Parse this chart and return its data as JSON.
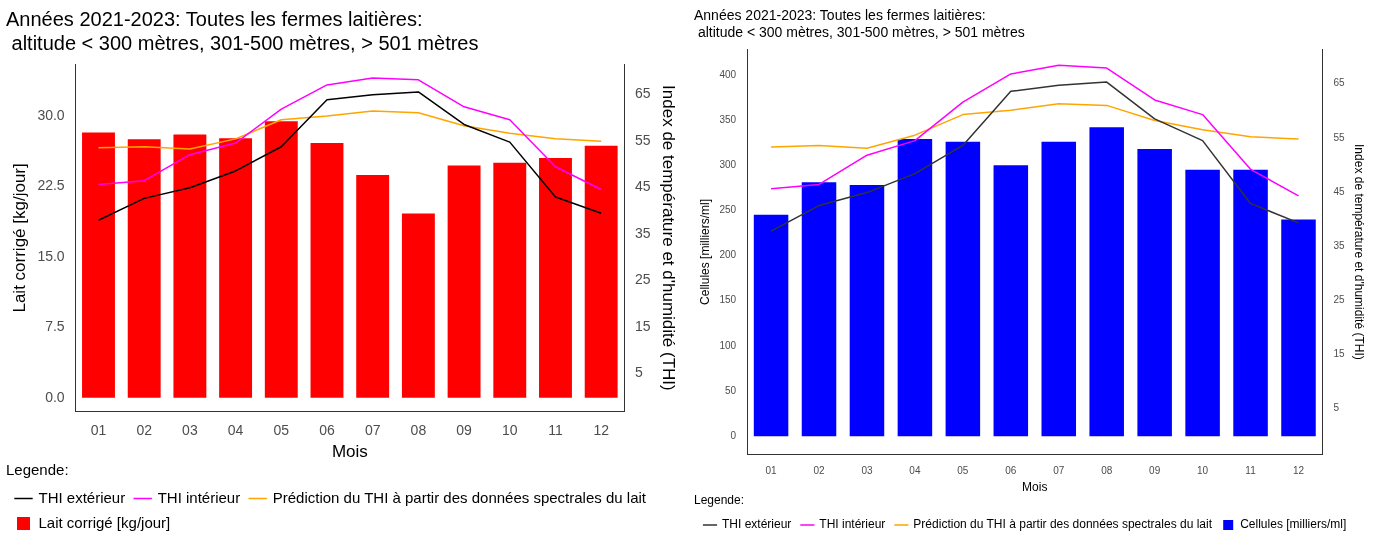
{
  "chart_data": [
    {
      "type": "bar",
      "title": "Années 2021-2023: Toutes les fermes laitières:\n altitude < 300 mètres, 301-500 mètres, > 501 mètres",
      "xlabel": "Mois",
      "ylabel": "Lait corrigé [kg/jour]",
      "y2label": "Index de température et d'humidité (THI)",
      "legend_title": "Legende:",
      "categories": [
        "01",
        "02",
        "03",
        "04",
        "05",
        "06",
        "07",
        "08",
        "09",
        "10",
        "11",
        "12"
      ],
      "series": [
        {
          "name": "Lait corrigé [kg/jour]",
          "color": "#ff0000",
          "values": [
            28.2,
            27.5,
            28.0,
            27.6,
            29.4,
            27.1,
            23.7,
            19.6,
            24.7,
            25.0,
            25.5,
            26.8
          ]
        },
        {
          "type": "line",
          "axis": "y2",
          "name": "THI extérieur",
          "color": "#000000",
          "values": [
            37.9,
            42.6,
            44.9,
            48.5,
            53.7,
            63.8,
            64.9,
            65.5,
            58.5,
            54.7,
            42.9,
            39.4
          ]
        },
        {
          "type": "line",
          "axis": "y2",
          "name": "THI intérieur",
          "color": "#ff00ff",
          "values": [
            45.6,
            46.4,
            52.0,
            54.5,
            61.8,
            67.0,
            68.5,
            68.1,
            62.3,
            59.5,
            49.4,
            44.5
          ]
        },
        {
          "type": "line",
          "axis": "y2",
          "name": "Prédiction du THI à partir des données spectrales du lait",
          "color": "#ffa500",
          "values": [
            53.5,
            53.7,
            53.2,
            55.4,
            59.5,
            60.3,
            61.4,
            61.0,
            58.2,
            56.6,
            55.4,
            54.9
          ]
        }
      ],
      "ylim": [
        -1.5,
        35.5
      ],
      "yticks": [
        {
          "value": 0,
          "label": "0.0"
        },
        {
          "value": 7.5,
          "label": "7.5"
        },
        {
          "value": 15,
          "label": "15.0"
        },
        {
          "value": 22.5,
          "label": "22.5"
        },
        {
          "value": 30,
          "label": "30.0"
        }
      ],
      "y2lim": [
        -3.3,
        71.5
      ],
      "y2ticks": [
        5,
        15,
        25,
        35,
        45,
        55,
        65
      ],
      "grid": false,
      "legend": "bottom"
    },
    {
      "type": "bar",
      "title": "Années 2021-2023: Toutes les fermes laitières:\n altitude < 300 mètres, 301-500 mètres, > 501 mètres",
      "xlabel": "Mois",
      "ylabel": "Cellules [milliers/ml]",
      "y2label": "Index de température et d'humidité (THI)",
      "legend_title": "Legende:",
      "categories": [
        "01",
        "02",
        "03",
        "04",
        "05",
        "06",
        "07",
        "08",
        "09",
        "10",
        "11",
        "12"
      ],
      "series": [
        {
          "name": "Cellules [milliers/ml]",
          "color": "#0000ff",
          "values": [
            245,
            281,
            278,
            329,
            326,
            300,
            326,
            342,
            318,
            295,
            295,
            240
          ]
        },
        {
          "type": "line",
          "axis": "y2",
          "name": "THI extérieur",
          "color": "#333333",
          "values": [
            37.8,
            42.5,
            44.9,
            48.4,
            53.6,
            63.6,
            64.7,
            65.3,
            58.5,
            54.5,
            42.9,
            39.3
          ]
        },
        {
          "type": "line",
          "axis": "y2",
          "name": "THI intérieur",
          "color": "#ff00ff",
          "values": [
            45.6,
            46.4,
            51.8,
            54.5,
            61.6,
            66.8,
            68.4,
            67.9,
            62.0,
            59.3,
            49.2,
            44.3
          ]
        },
        {
          "type": "line",
          "axis": "y2",
          "name": "Prédiction du THI à partir des données spectrales du lait",
          "color": "#ffa500",
          "values": [
            53.3,
            53.6,
            53.1,
            55.5,
            59.3,
            60.1,
            61.3,
            61.0,
            58.2,
            56.5,
            55.2,
            54.8
          ]
        }
      ],
      "ylim": [
        -20,
        428
      ],
      "yticks": [
        0,
        50,
        100,
        150,
        200,
        250,
        300,
        350,
        400
      ],
      "y2lim": [
        -3.4,
        71.3
      ],
      "y2ticks": [
        5,
        15,
        25,
        35,
        45,
        55,
        65
      ],
      "grid": false,
      "legend": "bottom"
    }
  ]
}
